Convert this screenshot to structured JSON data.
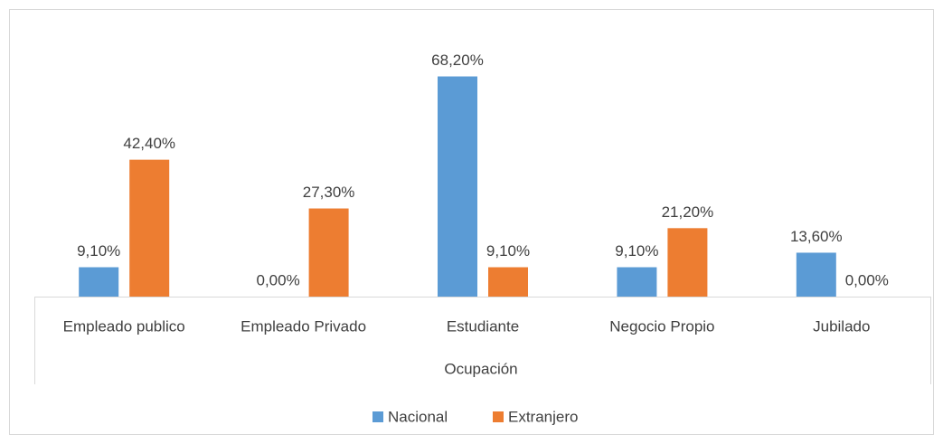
{
  "chart_data": {
    "type": "bar",
    "x_label": "Ocupación",
    "categories": [
      "Empleado publico",
      "Empleado Privado",
      "Estudiante",
      "Negocio Propio",
      "Jubilado"
    ],
    "series": [
      {
        "name": "Nacional",
        "color": "#5b9bd5",
        "values": [
          9.1,
          0,
          68.2,
          9.1,
          13.6
        ],
        "value_labels": [
          "9,10%",
          "0,00%",
          "68,20%",
          "9,10%",
          "13,60%"
        ]
      },
      {
        "name": "Extranjero",
        "color": "#ed7d31",
        "values": [
          42.4,
          27.3,
          9.1,
          21.2,
          0
        ],
        "value_labels": [
          "42,40%",
          "27,30%",
          "9,10%",
          "21,20%",
          "0,00%"
        ]
      }
    ]
  }
}
